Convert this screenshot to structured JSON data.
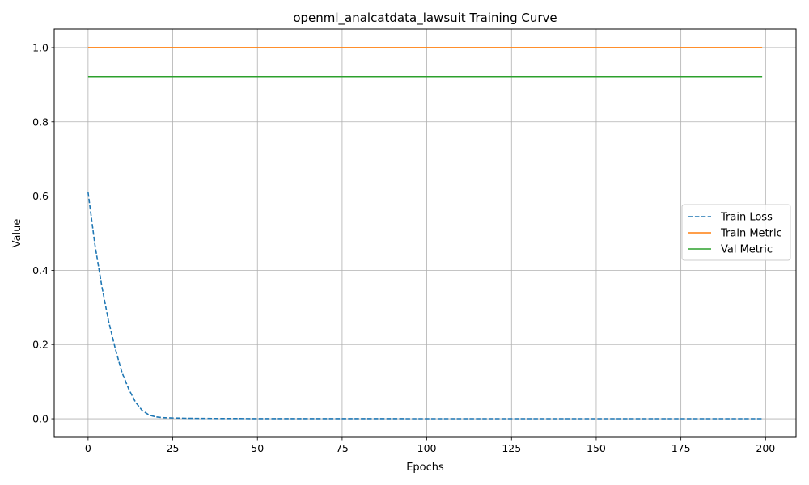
{
  "chart_data": {
    "type": "line",
    "title": "openml_analcatdata_lawsuit Training Curve",
    "xlabel": "Epochs",
    "ylabel": "Value",
    "xlim": [
      -10,
      209
    ],
    "ylim": [
      -0.05,
      1.05
    ],
    "xticks": [
      0,
      25,
      50,
      75,
      100,
      125,
      150,
      175,
      200
    ],
    "yticks": [
      0.0,
      0.2,
      0.4,
      0.6,
      0.8,
      1.0
    ],
    "xtick_labels": [
      "0",
      "25",
      "50",
      "75",
      "100",
      "125",
      "150",
      "175",
      "200"
    ],
    "ytick_labels": [
      "0.0",
      "0.2",
      "0.4",
      "0.6",
      "0.8",
      "1.0"
    ],
    "grid": true,
    "legend_position": "center-right",
    "series": [
      {
        "name": "Train Loss",
        "color": "#1f77b4",
        "style": "dashed",
        "x": [
          0,
          2,
          4,
          6,
          8,
          10,
          12,
          14,
          16,
          18,
          20,
          22,
          25,
          30,
          40,
          50,
          75,
          100,
          125,
          150,
          175,
          199
        ],
        "y": [
          0.61,
          0.47,
          0.36,
          0.265,
          0.19,
          0.125,
          0.08,
          0.045,
          0.022,
          0.01,
          0.005,
          0.003,
          0.002,
          0.001,
          0.0005,
          0.0003,
          0.0002,
          0.0001,
          0.0001,
          0.0001,
          0.0001,
          0.0001
        ]
      },
      {
        "name": "Train Metric",
        "color": "#ff7f0e",
        "style": "solid",
        "x": [
          0,
          199
        ],
        "y": [
          1.0,
          1.0
        ]
      },
      {
        "name": "Val Metric",
        "color": "#2ca02c",
        "style": "solid",
        "x": [
          0,
          199
        ],
        "y": [
          0.922,
          0.922
        ]
      }
    ]
  }
}
